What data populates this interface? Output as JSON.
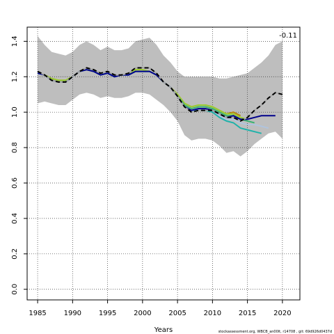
{
  "chart_data": {
    "type": "line",
    "xlabel": "Years",
    "ylabel": "",
    "xlim": [
      1983.5,
      2022.5
    ],
    "ylim": [
      -0.06,
      1.48
    ],
    "x_ticks": [
      1985,
      1990,
      1995,
      2000,
      2005,
      2010,
      2015,
      2020
    ],
    "y_ticks": [
      0.0,
      0.2,
      0.4,
      0.6,
      0.8,
      1.0,
      1.2,
      1.4
    ],
    "x_tick_labels": [
      "1985",
      "1990",
      "1995",
      "2000",
      "2005",
      "2010",
      "2015",
      "2020"
    ],
    "y_tick_labels": [
      "0.0",
      "0.2",
      "0.4",
      "0.6",
      "0.8",
      "1.0",
      "1.2",
      "1.4"
    ],
    "grid": true,
    "annotation": "-0.11",
    "credit": "stockassessment.org, WBCB_an00lt, r14708 , git: 69d926d0437d",
    "band": {
      "color": "#bebebe",
      "x": [
        1985,
        1986,
        1987,
        1988,
        1989,
        1990,
        1991,
        1992,
        1993,
        1994,
        1995,
        1996,
        1997,
        1998,
        1999,
        2000,
        2001,
        2002,
        2003,
        2004,
        2005,
        2006,
        2007,
        2008,
        2009,
        2010,
        2011,
        2012,
        2013,
        2014,
        2015,
        2016,
        2017,
        2018,
        2019,
        2020
      ],
      "upper": [
        1.43,
        1.38,
        1.34,
        1.33,
        1.32,
        1.34,
        1.38,
        1.4,
        1.38,
        1.35,
        1.37,
        1.35,
        1.35,
        1.36,
        1.4,
        1.41,
        1.42,
        1.38,
        1.32,
        1.28,
        1.23,
        1.2,
        1.2,
        1.2,
        1.2,
        1.2,
        1.19,
        1.19,
        1.2,
        1.21,
        1.22,
        1.25,
        1.28,
        1.32,
        1.38,
        1.4
      ],
      "lower": [
        1.05,
        1.06,
        1.05,
        1.04,
        1.04,
        1.07,
        1.1,
        1.11,
        1.1,
        1.08,
        1.09,
        1.08,
        1.08,
        1.09,
        1.11,
        1.11,
        1.1,
        1.07,
        1.04,
        1.0,
        0.95,
        0.87,
        0.84,
        0.85,
        0.85,
        0.84,
        0.81,
        0.77,
        0.78,
        0.75,
        0.78,
        0.82,
        0.85,
        0.88,
        0.89,
        0.85
      ]
    },
    "series": [
      {
        "color": "#000000",
        "dashed": true,
        "x": [
          1985,
          1986,
          1987,
          1988,
          1989,
          1990,
          1991,
          1992,
          1993,
          1994,
          1995,
          1996,
          1997,
          1998,
          1999,
          2000,
          2001,
          2002,
          2003,
          2004,
          2005,
          2006,
          2007,
          2008,
          2009,
          2010,
          2011,
          2012,
          2013,
          2014,
          2015,
          2016,
          2017,
          2018,
          2019,
          2020
        ],
        "values": [
          1.23,
          1.21,
          1.18,
          1.17,
          1.17,
          1.2,
          1.23,
          1.25,
          1.24,
          1.22,
          1.23,
          1.21,
          1.21,
          1.22,
          1.25,
          1.25,
          1.25,
          1.22,
          1.17,
          1.14,
          1.09,
          1.03,
          1.0,
          1.01,
          1.01,
          1.01,
          0.99,
          0.97,
          0.97,
          0.95,
          0.97,
          1.01,
          1.04,
          1.08,
          1.11,
          1.1
        ]
      },
      {
        "color": "#00008b",
        "dashed": false,
        "x": [
          1985,
          1986,
          1987,
          1988,
          1989,
          1990,
          1991,
          1992,
          1993,
          1994,
          1995,
          1996,
          1997,
          1998,
          1999,
          2000,
          2001,
          2002,
          2003,
          2004,
          2005,
          2006,
          2007,
          2008,
          2009,
          2010,
          2011,
          2012,
          2013,
          2014,
          2015,
          2016,
          2017,
          2018,
          2019
        ],
        "values": [
          1.22,
          1.21,
          1.18,
          1.17,
          1.17,
          1.2,
          1.23,
          1.24,
          1.23,
          1.21,
          1.22,
          1.2,
          1.21,
          1.21,
          1.23,
          1.23,
          1.23,
          1.21,
          1.17,
          1.14,
          1.09,
          1.03,
          1.01,
          1.02,
          1.02,
          1.01,
          0.99,
          0.97,
          0.98,
          0.96,
          0.96,
          0.97,
          0.98,
          0.98,
          0.98
        ]
      },
      {
        "color": "#b0c4de",
        "dashed": false,
        "x": [
          1985,
          1986,
          1987,
          1988,
          1989,
          1990,
          1991,
          1992,
          1993,
          1994,
          1995,
          1996,
          1997,
          1998,
          1999,
          2000,
          2001,
          2002,
          2003,
          2004,
          2005,
          2006,
          2007,
          2008,
          2009,
          2010,
          2011,
          2012,
          2013,
          2014,
          2015,
          2016,
          2017,
          2018
        ],
        "values": [
          1.22,
          1.21,
          1.18,
          1.17,
          1.17,
          1.2,
          1.23,
          1.24,
          1.23,
          1.21,
          1.22,
          1.2,
          1.21,
          1.21,
          1.23,
          1.23,
          1.23,
          1.21,
          1.17,
          1.14,
          1.09,
          1.03,
          1.01,
          1.02,
          1.02,
          1.01,
          0.98,
          0.96,
          0.96,
          0.94,
          0.93,
          0.93,
          0.92,
          0.91
        ]
      },
      {
        "color": "#20b2aa",
        "dashed": false,
        "x": [
          1985,
          1986,
          1987,
          1988,
          1989,
          1990,
          1991,
          1992,
          1993,
          1994,
          1995,
          1996,
          1997,
          1998,
          1999,
          2000,
          2001,
          2002,
          2003,
          2004,
          2005,
          2006,
          2007,
          2008,
          2009,
          2010,
          2011,
          2012,
          2013,
          2014,
          2015,
          2016,
          2017
        ],
        "values": [
          1.22,
          1.21,
          1.18,
          1.17,
          1.17,
          1.2,
          1.23,
          1.24,
          1.23,
          1.21,
          1.22,
          1.2,
          1.21,
          1.21,
          1.23,
          1.23,
          1.23,
          1.21,
          1.17,
          1.14,
          1.09,
          1.03,
          1.01,
          1.01,
          1.01,
          1.0,
          0.97,
          0.95,
          0.94,
          0.91,
          0.9,
          0.89,
          0.88
        ]
      },
      {
        "color": "#3cb371",
        "dashed": false,
        "x": [
          1985,
          1986,
          1987,
          1988,
          1989,
          1990,
          1991,
          1992,
          1993,
          1994,
          1995,
          1996,
          1997,
          1998,
          1999,
          2000,
          2001,
          2002,
          2003,
          2004,
          2005,
          2006,
          2007,
          2008,
          2009,
          2010,
          2011,
          2012,
          2013,
          2014,
          2015,
          2016
        ],
        "values": [
          1.22,
          1.21,
          1.18,
          1.17,
          1.17,
          1.2,
          1.23,
          1.24,
          1.23,
          1.21,
          1.22,
          1.2,
          1.21,
          1.21,
          1.23,
          1.23,
          1.23,
          1.21,
          1.17,
          1.14,
          1.09,
          1.04,
          1.02,
          1.03,
          1.03,
          1.02,
          1.0,
          0.98,
          0.98,
          0.96,
          0.95,
          0.94
        ]
      },
      {
        "color": "#9acd32",
        "dashed": false,
        "x": [
          1985,
          1986,
          1987,
          1988,
          1989,
          1990,
          1991,
          1992,
          1993,
          1994,
          1995,
          1996,
          1997,
          1998,
          1999,
          2000,
          2001,
          2002,
          2003,
          2004,
          2005,
          2006,
          2007,
          2008,
          2009,
          2010,
          2011,
          2012,
          2013,
          2014,
          2015
        ],
        "values": [
          1.22,
          1.21,
          1.19,
          1.18,
          1.18,
          1.2,
          1.23,
          1.24,
          1.23,
          1.21,
          1.22,
          1.2,
          1.21,
          1.21,
          1.24,
          1.24,
          1.23,
          1.21,
          1.17,
          1.14,
          1.1,
          1.05,
          1.03,
          1.04,
          1.04,
          1.03,
          1.01,
          0.99,
          0.99,
          0.97,
          0.96
        ]
      },
      {
        "color": "#b8860b",
        "dashed": false,
        "x": [
          1985,
          1986,
          1987,
          1988,
          1989,
          1990,
          1991,
          1992,
          1993,
          1994,
          1995,
          1996,
          1997,
          1998,
          1999,
          2000,
          2001,
          2002,
          2003,
          2004,
          2005,
          2006,
          2007,
          2008,
          2009,
          2010,
          2011,
          2012,
          2013,
          2014
        ],
        "values": [
          1.22,
          1.21,
          1.19,
          1.18,
          1.18,
          1.2,
          1.23,
          1.24,
          1.23,
          1.21,
          1.22,
          1.2,
          1.21,
          1.21,
          1.24,
          1.24,
          1.23,
          1.21,
          1.17,
          1.14,
          1.1,
          1.05,
          1.03,
          1.04,
          1.04,
          1.03,
          1.01,
          0.99,
          1.0,
          0.98
        ]
      }
    ]
  }
}
